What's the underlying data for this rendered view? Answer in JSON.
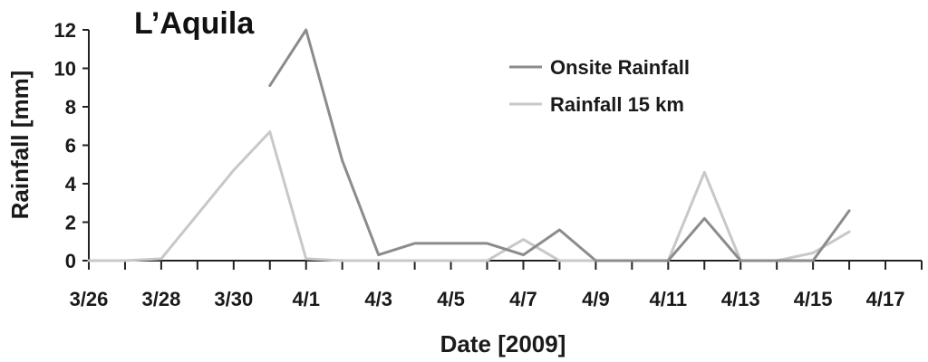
{
  "chart_data": {
    "type": "line",
    "title": "L’Aquila",
    "xlabel": "Date [2009]",
    "ylabel": "Rainfall [mm]",
    "ylim": [
      0,
      12
    ],
    "yticks": [
      0,
      2,
      4,
      6,
      8,
      10,
      12
    ],
    "xticks": [
      "3/26",
      "3/28",
      "3/30",
      "4/1",
      "4/3",
      "4/5",
      "4/7",
      "4/9",
      "4/11",
      "4/13",
      "4/15",
      "4/17"
    ],
    "xlim": [
      "3/26",
      "4/18"
    ],
    "legend_position": "top-right",
    "series": [
      {
        "name": "Onsite Rainfall",
        "color": "#8c8c8c",
        "x": [
          "3/31",
          "4/1",
          "4/2",
          "4/3",
          "4/4",
          "4/5",
          "4/6",
          "4/7",
          "4/8",
          "4/9",
          "4/10",
          "4/11",
          "4/12",
          "4/13",
          "4/14",
          "4/15",
          "4/16"
        ],
        "y": [
          9.1,
          12,
          5.2,
          0.3,
          0.9,
          0.9,
          0.9,
          0.3,
          1.6,
          0,
          0,
          0,
          2.2,
          0,
          0,
          0,
          2.6
        ]
      },
      {
        "name": "Rainfall 15 km",
        "color": "#c8c8c8",
        "x": [
          "3/26",
          "3/27",
          "3/28",
          "3/29",
          "3/30",
          "3/31",
          "4/1",
          "4/2",
          "4/3",
          "4/4",
          "4/5",
          "4/6",
          "4/7",
          "4/8",
          "4/9",
          "4/10",
          "4/11",
          "4/12",
          "4/13",
          "4/14",
          "4/15",
          "4/16"
        ],
        "y": [
          0,
          0,
          0.1,
          2.4,
          4.7,
          6.7,
          0.1,
          0,
          0,
          0,
          0,
          0,
          1.1,
          0,
          0,
          0,
          0,
          4.6,
          0,
          0,
          0.4,
          1.5
        ]
      }
    ]
  }
}
